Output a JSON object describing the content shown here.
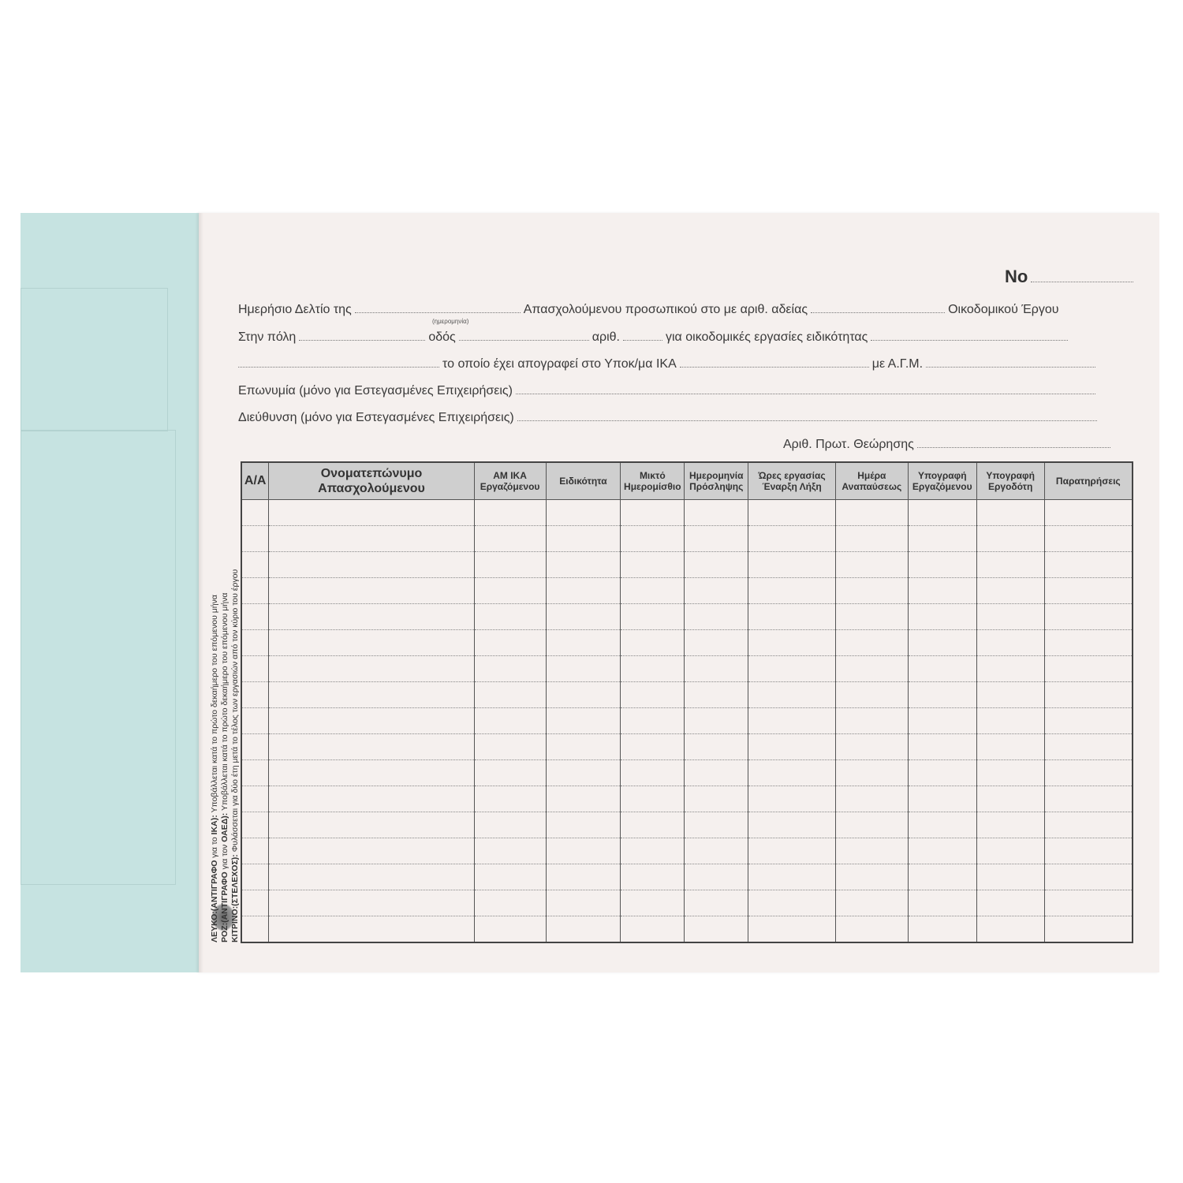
{
  "form_number_label": "No",
  "header": {
    "line1": {
      "a": "Ημερήσιο Δελτίο της",
      "date_hint": "(ημερομηνία)",
      "b": "Απασχολούμενου προσωπικού στο με αριθ. αδείας",
      "c": "Οικοδομικού Έργου"
    },
    "line2": {
      "a": "Στην πόλη",
      "b": "οδός",
      "c": "αριθ.",
      "d": "για οικοδομικές εργασίες ειδικότητας"
    },
    "line3": {
      "a": "το οποίο έχει απογραφεί στο Υποκ/μα ΙΚΑ",
      "b": "με Α.Γ.Μ."
    },
    "line4": "Επωνυμία (μόνο για Εστεγασμένες Επιχειρήσεις)",
    "line5": "Διεύθυνση (μόνο για Εστεγασμένες Επιχειρήσεις)",
    "line6": "Αριθ. Πρωτ. Θεώρησης"
  },
  "table": {
    "columns": [
      "Α/Α",
      "Ονοματεπώνυμο Απασχολούμενου",
      "ΑΜ ΙΚΑ Εργαζόμενου",
      "Ειδικότητα",
      "Μικτό Ημερομίσθιο",
      "Ημερομηνία Πρόσληψης",
      "Ώρες εργασίας Έναρξη Λήξη",
      "Ημέρα Αναπαύσεως",
      "Υπογραφή Εργαζόμενου",
      "Υπογραφή Εργοδότη",
      "Παρατηρήσεις"
    ]
  },
  "side_note": {
    "l1_bold": "ΛΕΥΚΟ:(ΑΝΤΙΓΡΑΦΟ",
    "l1_mid": "για το",
    "l1_bold2": "ΙΚΑ):",
    "l1_rest": "Υποβάλλεται κατά το πρώτο δεκαήμερο του επόμενου μήνα",
    "l2_bold": "ΡΟΖ:(ΑΝΤΙΓΡΑΦΟ",
    "l2_mid": "για τον",
    "l2_bold2": "ΟΑΕΔ):",
    "l2_rest": "Υποβάλλεται κατά το πρώτο δεκαήμερο του επόμενου μήνα",
    "l3_bold": "ΚΙΤΡΙΝΟ:(ΣΤΕΛΕΧΟΣ):",
    "l3_rest": "Φυλάσσεται για δύο έτη μετά το τέλος των εργασιών από τον κύριο του έργου"
  },
  "colors": {
    "page": "#f5f0ee",
    "blue_sheet": "#c6e3e1",
    "header_fill": "#cfcfcf"
  }
}
